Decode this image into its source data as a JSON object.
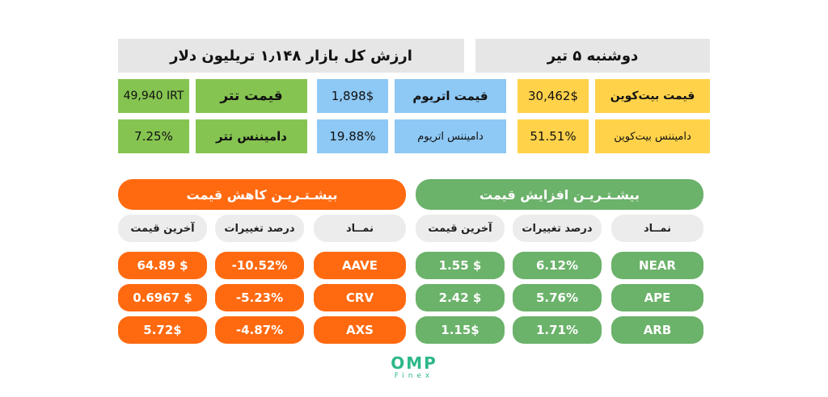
{
  "header": {
    "market_cap": "ارزش کل بازار ۱٫۱۴۸ تریلیون دلار",
    "date": "دوشنبه ۵ تیر"
  },
  "stats": {
    "btc_price_label": "قیمت بیت‌کوین",
    "btc_price_value": "30,462$",
    "eth_price_label": "قیمت اتریوم",
    "eth_price_value": "1,898$",
    "usdt_price_label": "قیمت تتر",
    "usdt_price_value": "49,940 IRT",
    "btc_dom_label": "دامیننس بیت‌کوین",
    "btc_dom_value": "51.51%",
    "eth_dom_label": "دامیننس اتریوم",
    "eth_dom_value": "19.88%",
    "usdt_dom_label": "دامیننس تتر",
    "usdt_dom_value": "7.25%"
  },
  "gainers": {
    "title": "بیشـتـریـن افزایش قیمت",
    "col_symbol": "نمــاد",
    "col_change": "درصد تغییرات",
    "col_last": "آخرین قیمت",
    "rows": [
      {
        "symbol": "NEAR",
        "change": "6.12%",
        "last": "1.55 $"
      },
      {
        "symbol": "APE",
        "change": "5.76%",
        "last": "2.42 $"
      },
      {
        "symbol": "ARB",
        "change": "1.71%",
        "last": "1.15$"
      }
    ]
  },
  "losers": {
    "title": "بیشـتـریـن کاهش قیمت",
    "col_symbol": "نمــاد",
    "col_change": "درصد تغییرات",
    "col_last": "آخرین قیمت",
    "rows": [
      {
        "symbol": "AAVE",
        "change": "-10.52%",
        "last": "64.89 $"
      },
      {
        "symbol": "CRV",
        "change": "-5.23%",
        "last": "0.6967 $"
      },
      {
        "symbol": "AXS",
        "change": "-4.87%",
        "last": "5.72$"
      }
    ]
  },
  "brand": {
    "name": "OMP",
    "sub": "Finex"
  },
  "colors": {
    "yellow": "#ffd24a",
    "blue": "#8ec8f4",
    "green": "#86c451",
    "gain": "#6bb26a",
    "loss": "#ff6a10",
    "brand": "#2db88a"
  }
}
